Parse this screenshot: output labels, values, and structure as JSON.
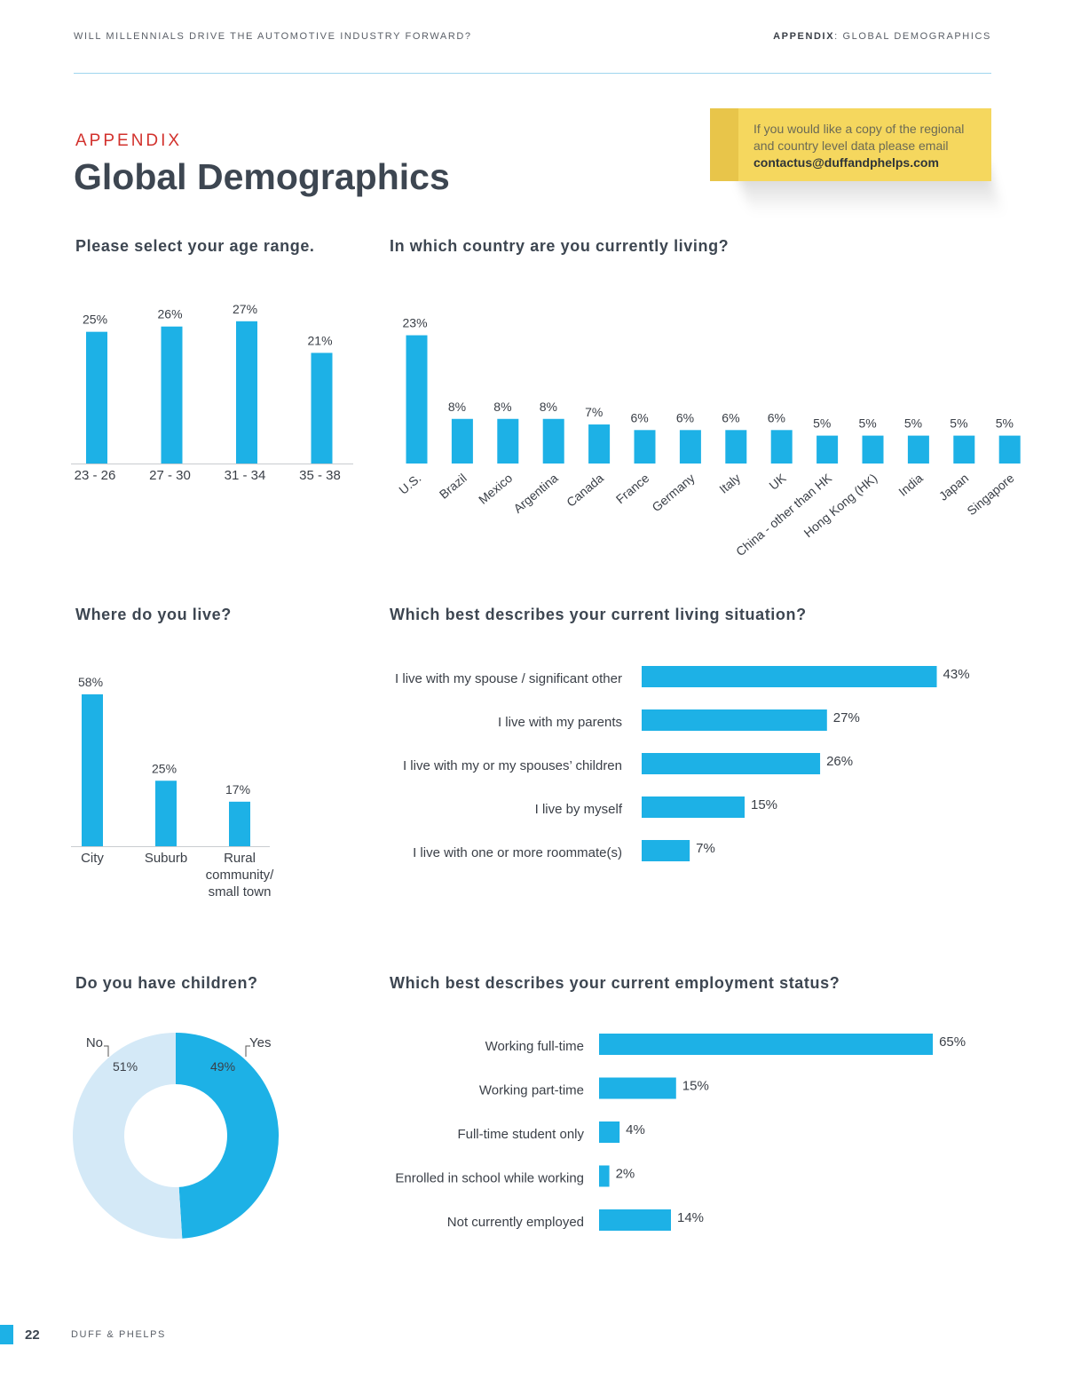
{
  "header": {
    "left": "WILL MILLENNIALS DRIVE THE AUTOMOTIVE INDUSTRY FORWARD?",
    "right_bold": "APPENDIX",
    "right_rest": ": GLOBAL DEMOGRAPHICS"
  },
  "kicker": "APPENDIX",
  "title": "Global Demographics",
  "note": {
    "line1": "If you would like a copy of the regional",
    "line2": "and country level data please email",
    "email": "contactus@duffandphelps.com"
  },
  "footer": {
    "page": "22",
    "brand": "DUFF & PHELPS"
  },
  "colors": {
    "bar": "#1db1e6",
    "donut_light": "#d4e9f7",
    "accent_red": "#d2312c"
  },
  "chart_data": [
    {
      "id": "age",
      "type": "bar",
      "title": "Please select your age range.",
      "categories": [
        "23 - 26",
        "27 - 30",
        "31 - 34",
        "35 - 38"
      ],
      "values": [
        25,
        26,
        27,
        21
      ],
      "labels": [
        "25%",
        "26%",
        "27%",
        "21%"
      ],
      "ylim": [
        0,
        30
      ]
    },
    {
      "id": "country",
      "type": "bar",
      "title": "In which country are you currently living?",
      "categories": [
        "U.S.",
        "Brazil",
        "Mexico",
        "Argentina",
        "Canada",
        "France",
        "Germany",
        "Italy",
        "UK",
        "China - other than HK",
        "Hong Kong (HK)",
        "India",
        "Japan",
        "Singapore"
      ],
      "values": [
        23,
        8,
        8,
        8,
        7,
        6,
        6,
        6,
        6,
        5,
        5,
        5,
        5,
        5
      ],
      "labels": [
        "23%",
        "8%",
        "8%",
        "8%",
        "7%",
        "6%",
        "6%",
        "6%",
        "6%",
        "5%",
        "5%",
        "5%",
        "5%",
        "5%"
      ],
      "ylim": [
        0,
        25
      ]
    },
    {
      "id": "live",
      "type": "bar",
      "title": "Where do you live?",
      "categories": [
        [
          "City"
        ],
        [
          "Suburb"
        ],
        [
          "Rural",
          "community/",
          "small town"
        ]
      ],
      "values": [
        58,
        25,
        17
      ],
      "labels": [
        "58%",
        "25%",
        "17%"
      ],
      "ylim": [
        0,
        60
      ]
    },
    {
      "id": "situation",
      "type": "bar",
      "orientation": "horizontal",
      "title": "Which best describes your current living situation?",
      "categories": [
        "I live with my spouse / significant other",
        "I live with my parents",
        "I live with my or my spouses’ children",
        "I live by myself",
        "I live with one or more roommate(s)"
      ],
      "values": [
        43,
        27,
        26,
        15,
        7
      ],
      "labels": [
        "43%",
        "27%",
        "26%",
        "15%",
        "7%"
      ],
      "xlim": [
        0,
        45
      ]
    },
    {
      "id": "children",
      "type": "pie",
      "title": "Do you have children?",
      "categories": [
        "No",
        "Yes"
      ],
      "values": [
        51,
        49
      ],
      "labels": [
        "51%",
        "49%"
      ]
    },
    {
      "id": "employment",
      "type": "bar",
      "orientation": "horizontal",
      "title": "Which best describes your current employment status?",
      "categories": [
        "Working full-time",
        "Working part-time",
        "Full-time student only",
        "Enrolled in school while working",
        "Not currently employed"
      ],
      "values": [
        65,
        15,
        4,
        2,
        14
      ],
      "labels": [
        "65%",
        "15%",
        "4%",
        "2%",
        "14%"
      ],
      "xlim": [
        0,
        70
      ]
    }
  ]
}
